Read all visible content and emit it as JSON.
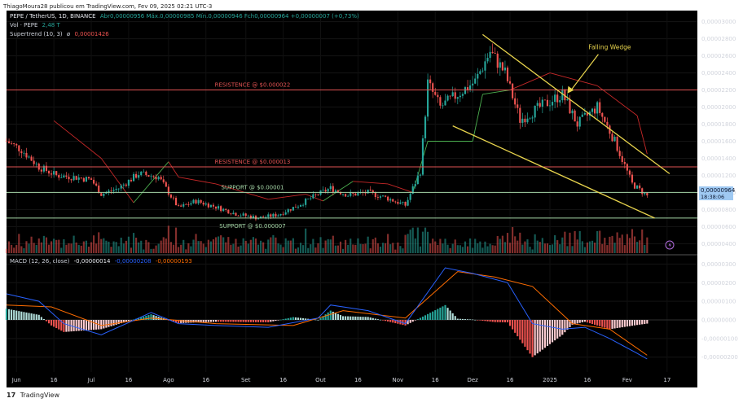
{
  "publisher_line": "ThiagoMoura28 publicou em TradingView.com, Fev 09, 2025 02:21 UTC-3",
  "footer_brand": "TradingView",
  "header": {
    "symbol": "PEPE / TetherUS, 1D, BINANCE",
    "ohlc": "Abr0,00000956  Máx.0,00000985  Mín.0,00000946  Fch0,00000964  +0,00000007 (+0,73%)",
    "vol_label": "Vol · PEPE",
    "vol_value": "2,48 T",
    "supertrend_label": "Supertrend (10, 3)",
    "supertrend_value": "0,00001426",
    "macd_label": "MACD (12, 26, close)",
    "macd_hist": "-0,00000014",
    "macd_line": "-0,00000208",
    "macd_signal": "-0,00000193"
  },
  "colors": {
    "background": "#000000",
    "up_candle": "#26a69a",
    "down_candle": "#ef5350",
    "resistance_line": "#e05252",
    "support_line": "#a5d6a7",
    "wedge_line": "#e8d44d",
    "supertrend_up": "#4caf50",
    "supertrend_down": "#c62828",
    "macd_line": "#2962ff",
    "signal_line": "#ff6d00",
    "price_badge": "#9fc9f2"
  },
  "price_badge": {
    "price": "0,00000964",
    "countdown": "18:38:06"
  },
  "chart_data": [
    {
      "type": "candlestick",
      "title": "PEPE / TetherUS, 1D, BINANCE",
      "x_tick_labels": [
        "Jun",
        "16",
        "Jul",
        "16",
        "Ago",
        "16",
        "Set",
        "16",
        "Out",
        "16",
        "Nov",
        "16",
        "Dez",
        "16",
        "2025",
        "16",
        "Fev",
        "17"
      ],
      "x_tick_dates": [
        "2024-06-01",
        "2024-06-16",
        "2024-07-01",
        "2024-07-16",
        "2024-08-01",
        "2024-08-16",
        "2024-09-01",
        "2024-09-16",
        "2024-10-01",
        "2024-10-16",
        "2024-11-01",
        "2024-11-16",
        "2024-12-01",
        "2024-12-16",
        "2025-01-01",
        "2025-01-16",
        "2025-02-01",
        "2025-02-17"
      ],
      "x_range": [
        "2024-05-28",
        "2025-02-20"
      ],
      "y_tick_labels": [
        "0,00000400",
        "0,00000600",
        "0,00000800",
        "0,00001000",
        "0,00001200",
        "0,00001400",
        "0,00001600",
        "0,00001800",
        "0,00002000",
        "0,00002200",
        "0,00002400",
        "0,00002600",
        "0,00002800",
        "0,00003000"
      ],
      "y_ticks": [
        4e-06,
        6e-06,
        8e-06,
        1e-05,
        1.2e-05,
        1.4e-05,
        1.6e-05,
        1.8e-05,
        2e-05,
        2.2e-05,
        2.4e-05,
        2.6e-05,
        2.8e-05,
        3e-05
      ],
      "ylim": [
        2.7e-06,
        3.13e-05
      ],
      "close_path": [
        [
          "2024-05-28",
          1.6e-05
        ],
        [
          "2024-06-03",
          1.5e-05
        ],
        [
          "2024-06-10",
          1.3e-05
        ],
        [
          "2024-06-17",
          1.2e-05
        ],
        [
          "2024-06-24",
          1.18e-05
        ],
        [
          "2024-07-01",
          1.15e-05
        ],
        [
          "2024-07-05",
          9.8e-06
        ],
        [
          "2024-07-12",
          1.05e-05
        ],
        [
          "2024-07-20",
          1.22e-05
        ],
        [
          "2024-07-28",
          1.18e-05
        ],
        [
          "2024-08-05",
          8.2e-06
        ],
        [
          "2024-08-12",
          9e-06
        ],
        [
          "2024-08-20",
          8.3e-06
        ],
        [
          "2024-08-28",
          7.5e-06
        ],
        [
          "2024-09-06",
          7e-06
        ],
        [
          "2024-09-14",
          7.4e-06
        ],
        [
          "2024-09-22",
          8.5e-06
        ],
        [
          "2024-09-30",
          9.8e-06
        ],
        [
          "2024-10-05",
          1.05e-05
        ],
        [
          "2024-10-12",
          9.7e-06
        ],
        [
          "2024-10-20",
          1e-05
        ],
        [
          "2024-10-28",
          9.3e-06
        ],
        [
          "2024-11-04",
          8.5e-06
        ],
        [
          "2024-11-10",
          1.25e-05
        ],
        [
          "2024-11-13",
          2.28e-05
        ],
        [
          "2024-11-18",
          2e-05
        ],
        [
          "2024-11-25",
          2.15e-05
        ],
        [
          "2024-12-02",
          2.3e-05
        ],
        [
          "2024-12-08",
          2.65e-05
        ],
        [
          "2024-12-14",
          2.4e-05
        ],
        [
          "2024-12-20",
          1.85e-05
        ],
        [
          "2024-12-28",
          2e-05
        ],
        [
          "2025-01-06",
          2.15e-05
        ],
        [
          "2025-01-12",
          1.8e-05
        ],
        [
          "2025-01-20",
          2e-05
        ],
        [
          "2025-01-27",
          1.6e-05
        ],
        [
          "2025-02-03",
          1.1e-05
        ],
        [
          "2025-02-09",
          9.6e-06
        ]
      ],
      "horizontal_levels": [
        {
          "label": "RESISTENCE @ $0.000022",
          "value": 2.2e-05,
          "kind": "resistance"
        },
        {
          "label": "RESISTENCE @ $0.000013",
          "value": 1.3e-05,
          "kind": "resistance"
        },
        {
          "label": "SUPPORT @ $0.00001",
          "value": 1e-05,
          "kind": "support"
        },
        {
          "label": "SUPPORT @ $0.000007",
          "value": 7e-06,
          "kind": "support"
        }
      ],
      "wedge_upper": [
        [
          "2024-12-05",
          2.85e-05
        ],
        [
          "2025-02-18",
          1.22e-05
        ]
      ],
      "wedge_lower": [
        [
          "2024-11-23",
          1.78e-05
        ],
        [
          "2025-02-12",
          7e-06
        ]
      ],
      "annotation": {
        "text": "Falling Wedge",
        "target": [
          "2025-01-08",
          2.16e-05
        ]
      },
      "supertrend_path": [
        [
          "2024-06-16",
          1.84e-05
        ],
        [
          "2024-07-05",
          1.4e-05
        ],
        [
          "2024-07-18",
          8.8e-06
        ],
        [
          "2024-08-01",
          1.36e-05
        ],
        [
          "2024-08-05",
          1.18e-05
        ],
        [
          "2024-08-20",
          1.1e-05
        ],
        [
          "2024-09-10",
          9.2e-06
        ],
        [
          "2024-09-25",
          9.8e-06
        ],
        [
          "2024-10-02",
          9e-06
        ],
        [
          "2024-10-14",
          1.13e-05
        ],
        [
          "2024-10-28",
          1.1e-05
        ],
        [
          "2024-11-07",
          1e-05
        ],
        [
          "2024-11-13",
          1.6e-05
        ],
        [
          "2024-12-01",
          1.6e-05
        ],
        [
          "2024-12-05",
          2.15e-05
        ],
        [
          "2024-12-16",
          2.2e-05
        ],
        [
          "2025-01-01",
          2.4e-05
        ],
        [
          "2025-01-20",
          2.25e-05
        ],
        [
          "2025-02-05",
          1.9e-05
        ],
        [
          "2025-02-09",
          1.45e-05
        ]
      ]
    },
    {
      "type": "bar",
      "title": "Vol · PEPE",
      "series": [
        {
          "name": "Vol · PEPE",
          "last_value": "2,48 T"
        }
      ]
    },
    {
      "type": "line",
      "title": "MACD (12, 26, close)",
      "y_tick_labels": [
        "-0,00000200",
        "-0,00000100",
        "0,00000000",
        "0,00000100",
        "0,00000200",
        "0,00000300"
      ],
      "y_ticks": [
        -2e-06,
        -1e-06,
        0,
        1e-06,
        2e-06,
        3e-06
      ],
      "ylim": [
        -2.8e-06,
        3.5e-06
      ],
      "macd_path": [
        [
          "2024-05-28",
          1.4e-06
        ],
        [
          "2024-06-10",
          1e-06
        ],
        [
          "2024-06-20",
          -2e-07
        ],
        [
          "2024-07-05",
          -8e-07
        ],
        [
          "2024-07-25",
          4e-07
        ],
        [
          "2024-08-05",
          -2e-07
        ],
        [
          "2024-08-20",
          -3e-07
        ],
        [
          "2024-09-10",
          -4e-07
        ],
        [
          "2024-09-30",
          1e-07
        ],
        [
          "2024-10-05",
          8e-07
        ],
        [
          "2024-10-20",
          5e-07
        ],
        [
          "2024-11-04",
          -2e-07
        ],
        [
          "2024-11-20",
          2.8e-06
        ],
        [
          "2024-12-01",
          2.5e-06
        ],
        [
          "2024-12-15",
          2e-06
        ],
        [
          "2024-12-25",
          -2e-07
        ],
        [
          "2025-01-06",
          -5e-07
        ],
        [
          "2025-01-15",
          -4e-07
        ],
        [
          "2025-01-25",
          -1e-06
        ],
        [
          "2025-02-05",
          -1.8e-06
        ],
        [
          "2025-02-09",
          -2.1e-06
        ]
      ],
      "signal_path": [
        [
          "2024-05-28",
          8e-07
        ],
        [
          "2024-06-15",
          7e-07
        ],
        [
          "2024-07-05",
          -3e-07
        ],
        [
          "2024-07-25",
          1e-07
        ],
        [
          "2024-08-20",
          -2e-07
        ],
        [
          "2024-09-20",
          -3e-07
        ],
        [
          "2024-10-10",
          5e-07
        ],
        [
          "2024-11-04",
          1e-07
        ],
        [
          "2024-11-25",
          2.6e-06
        ],
        [
          "2024-12-10",
          2.3e-06
        ],
        [
          "2024-12-25",
          1.8e-06
        ],
        [
          "2025-01-10",
          -2e-07
        ],
        [
          "2025-01-25",
          -5e-07
        ],
        [
          "2025-02-09",
          -1.9e-06
        ]
      ]
    }
  ]
}
